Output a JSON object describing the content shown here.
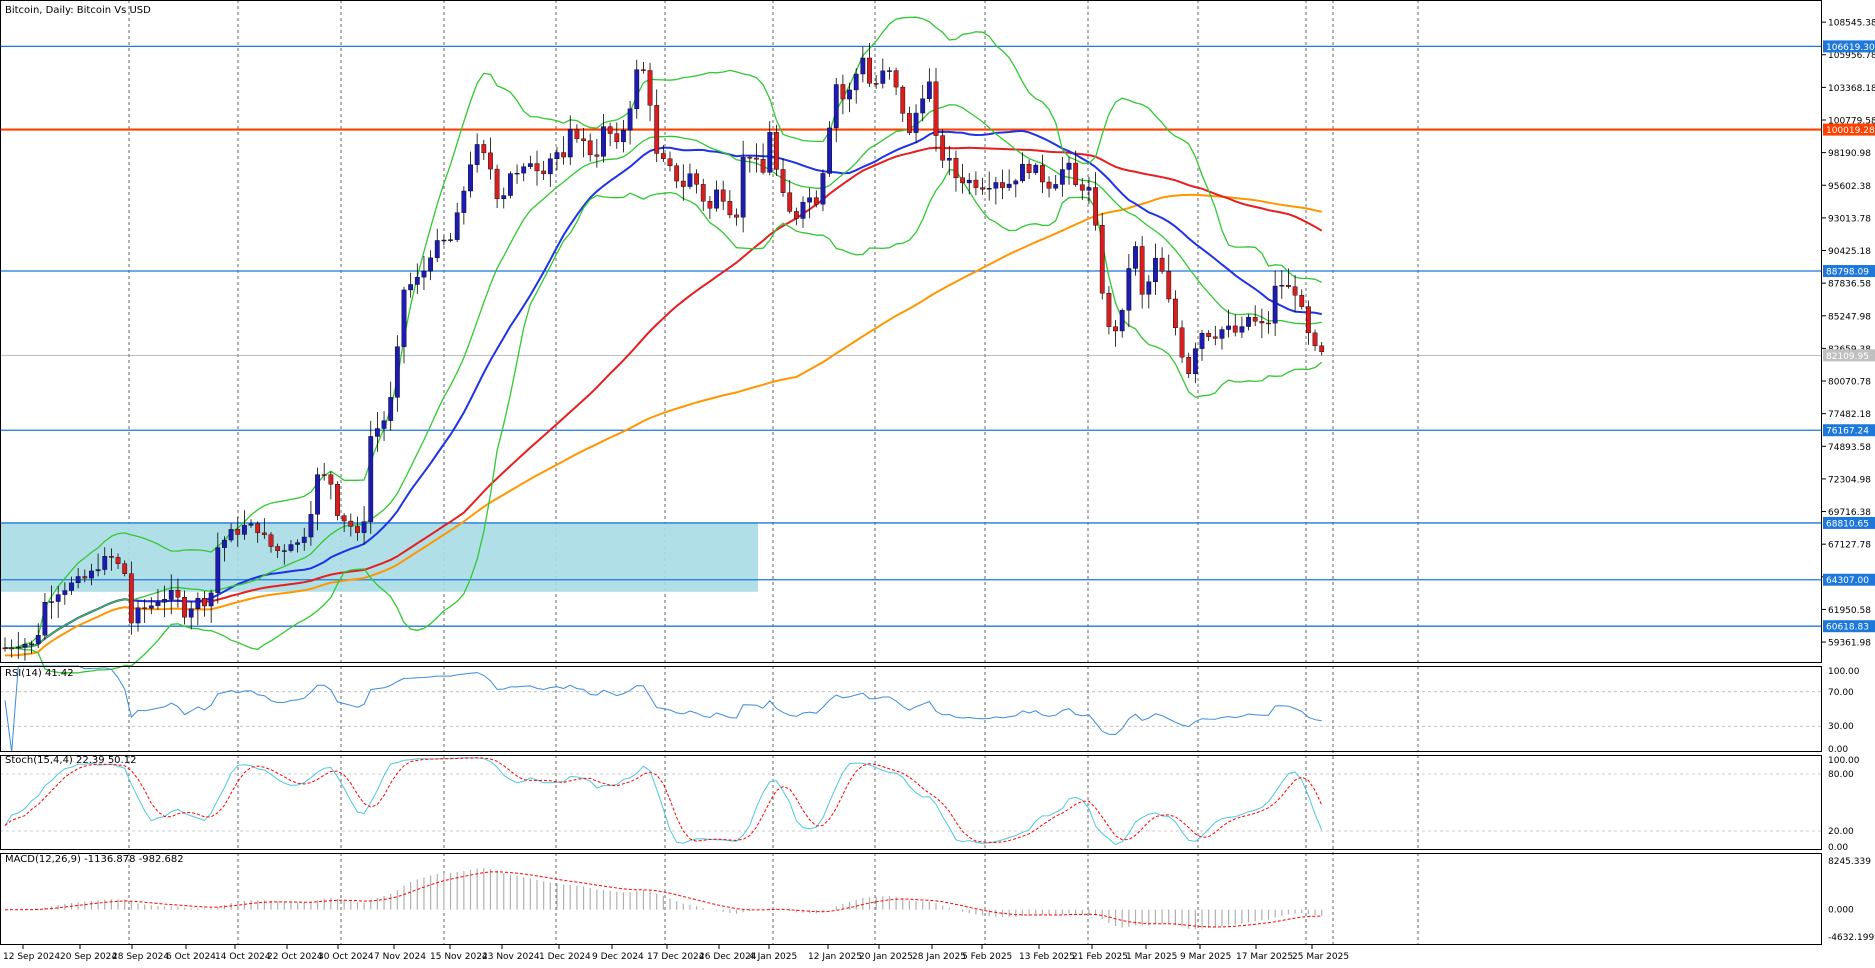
{
  "window": {
    "title": "Bitcoin, Daily:  Bitcoin Vs USD"
  },
  "colors": {
    "bull_candle": "#1c1cb4",
    "bear_candle": "#d81e1e",
    "bollinger": "#32c832",
    "ma_blue": "#1e32e6",
    "ma_red": "#e61e1e",
    "ma_orange": "#ff9600",
    "hline_blue": "#1e78dc",
    "hline_orange": "#ff4000",
    "zone_fill": "#a8dce6",
    "rsi_line": "#3c8cdc",
    "stoch_main": "#50c8dc",
    "stoch_signal": "#ff0000",
    "macd_signal": "#ff0000",
    "macd_hist": "#b0b0b0"
  },
  "chart_data": {
    "type": "candlestick",
    "symbol": "Bitcoin",
    "timeframe": "Daily",
    "description": "Bitcoin Vs USD",
    "x_ticks": [
      "12 Sep 2024",
      "20 Sep 2024",
      "28 Sep 2024",
      "6 Oct 2024",
      "14 Oct 2024",
      "22 Oct 2024",
      "30 Oct 2024",
      "7 Nov 2024",
      "15 Nov 2024",
      "23 Nov 2024",
      "1 Dec 2024",
      "9 Dec 2024",
      "17 Dec 2024",
      "26 Dec 2024",
      "4 Jan 2025",
      "12 Jan 2025",
      "20 Jan 2025",
      "28 Jan 2025",
      "5 Feb 2025",
      "13 Feb 2025",
      "21 Feb 2025",
      "1 Mar 2025",
      "9 Mar 2025",
      "17 Mar 2025",
      "25 Mar 2025"
    ],
    "y_ticks": [
      "108545.38",
      "105956.78",
      "103368.18",
      "100779.58",
      "98190.98",
      "95602.38",
      "93013.78",
      "90425.18",
      "87836.58",
      "85247.98",
      "82659.38",
      "80070.78",
      "77482.18",
      "74893.58",
      "72304.98",
      "69716.38",
      "67127.78",
      "64539.18",
      "61950.58",
      "59361.98"
    ],
    "y_range": [
      57700,
      110300
    ],
    "price_levels": [
      {
        "value": 106619.3,
        "label": "106619.30",
        "color": "#1e78dc"
      },
      {
        "value": 100019.28,
        "label": "100019.28",
        "color": "#ff4000"
      },
      {
        "value": 88798.09,
        "label": "88798.09",
        "color": "#1e78dc"
      },
      {
        "value": 76167.24,
        "label": "76167.24",
        "color": "#1e78dc"
      },
      {
        "value": 68810.65,
        "label": "68810.65",
        "color": "#1e78dc"
      },
      {
        "value": 64307.0,
        "label": "64307.00",
        "color": "#1e78dc"
      },
      {
        "value": 60618.83,
        "label": "60618.83",
        "color": "#1e78dc"
      }
    ],
    "current_price": {
      "value": 82109.95,
      "label": "82109.95"
    },
    "zone": {
      "from_index": 0,
      "to_index": 91,
      "high": 68810.65,
      "low": 63350
    },
    "candles_count": 199,
    "close_anchors": [
      [
        0,
        58600
      ],
      [
        4,
        59100
      ],
      [
        8,
        60000
      ],
      [
        12,
        61200
      ],
      [
        16,
        64200
      ],
      [
        20,
        65300
      ],
      [
        24,
        65600
      ],
      [
        28,
        64200
      ],
      [
        32,
        61800
      ],
      [
        36,
        62400
      ],
      [
        40,
        63100
      ],
      [
        44,
        62300
      ],
      [
        48,
        63400
      ],
      [
        52,
        67200
      ],
      [
        56,
        68300
      ],
      [
        60,
        68500
      ],
      [
        64,
        67200
      ],
      [
        68,
        67800
      ],
      [
        72,
        69600
      ],
      [
        76,
        72000
      ],
      [
        80,
        69400
      ],
      [
        84,
        68600
      ],
      [
        88,
        69800
      ],
      [
        92,
        75800
      ],
      [
        96,
        80200
      ],
      [
        100,
        87300
      ],
      [
        104,
        88400
      ],
      [
        108,
        90500
      ],
      [
        112,
        91300
      ],
      [
        116,
        98200
      ],
      [
        120,
        97300
      ],
      [
        124,
        96100
      ],
      [
        128,
        97100
      ],
      [
        132,
        97000
      ],
      [
        136,
        97300
      ],
      [
        140,
        98200
      ],
      [
        144,
        97600
      ],
      [
        148,
        99800
      ],
      [
        152,
        100200
      ],
      [
        156,
        103200
      ],
      [
        160,
        104900
      ],
      [
        162,
        106000
      ],
      [
        164,
        101500
      ],
      [
        168,
        97100
      ],
      [
        172,
        97200
      ],
      [
        176,
        95400
      ],
      [
        180,
        97600
      ],
      [
        184,
        93800
      ],
      [
        188,
        92800
      ]
    ],
    "stats": {
      "rsi_period": 14,
      "stoch": "15,4,4",
      "macd": "12,26,9"
    }
  },
  "indicators": {
    "rsi": {
      "label": "RSI(14) 41.42",
      "levels": [
        "100.00",
        "70.00",
        "30.00",
        "0.00"
      ]
    },
    "stoch": {
      "label": "Stoch(15,4,4) 22.39 50.12",
      "levels": [
        "100.00",
        "80.00",
        "20.00",
        "0.00"
      ]
    },
    "macd": {
      "label": "MACD(12,26,9) -1136.878 -982.682",
      "levels": [
        "8245.339",
        "0.000",
        "-4632.199"
      ]
    }
  }
}
